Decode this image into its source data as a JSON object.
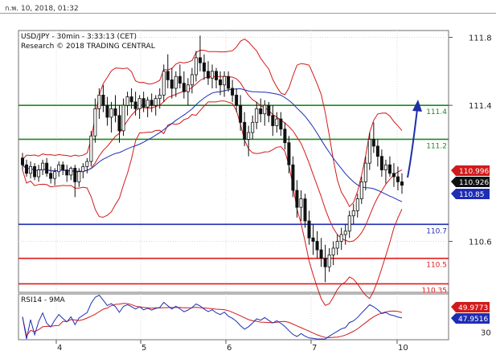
{
  "header": {
    "date": "ก.พ. 10, 2018, 01:32"
  },
  "chart_data": {
    "type": "candlestick",
    "title": "USD/JPY - 30min - 3:33:13 (CET)",
    "subtitle": "Research © 2018 TRADING CENTRAL",
    "x_ticks": [
      "4",
      "5",
      "6",
      "7",
      "10"
    ],
    "y_ticks": [
      "111.8",
      "111.4",
      "110.6"
    ],
    "ylim": [
      110.3,
      111.84
    ],
    "grid": true,
    "levels": [
      {
        "value": 111.4,
        "label": "111.4",
        "color": "#1e8a1e"
      },
      {
        "value": 111.2,
        "label": "111.2",
        "color": "#1e8a1e"
      },
      {
        "value": 110.7,
        "label": "110.7",
        "color": "#1e2db4"
      },
      {
        "value": 110.5,
        "label": "110.5",
        "color": "#e01a1a"
      },
      {
        "value": 110.35,
        "label": "110.35",
        "color": "#e01a1a"
      }
    ],
    "price_tags": [
      {
        "label": "110.996",
        "value": 110.996,
        "color": "#d11a1a"
      },
      {
        "label": "110.926",
        "value": 110.926,
        "color": "#111111"
      },
      {
        "label": "110.85",
        "value": 110.85,
        "color": "#1e2db4"
      }
    ],
    "ohlc": [
      [
        111.09,
        111.12,
        111.02,
        111.05
      ],
      [
        111.05,
        111.08,
        110.98,
        111.0
      ],
      [
        111.0,
        111.07,
        110.97,
        111.04
      ],
      [
        111.04,
        111.06,
        110.96,
        110.98
      ],
      [
        110.98,
        111.05,
        110.95,
        111.02
      ],
      [
        111.02,
        111.08,
        110.99,
        111.06
      ],
      [
        111.06,
        111.09,
        110.98,
        111.0
      ],
      [
        111.0,
        111.04,
        110.94,
        110.97
      ],
      [
        110.97,
        111.03,
        110.93,
        111.01
      ],
      [
        111.01,
        111.07,
        110.98,
        111.05
      ],
      [
        111.05,
        111.07,
        110.99,
        111.02
      ],
      [
        111.02,
        111.05,
        110.95,
        110.99
      ],
      [
        110.99,
        111.04,
        110.96,
        111.03
      ],
      [
        111.03,
        111.05,
        110.86,
        110.95
      ],
      [
        110.95,
        111.03,
        110.92,
        111.01
      ],
      [
        111.01,
        111.06,
        110.97,
        111.04
      ],
      [
        111.04,
        111.09,
        111.0,
        111.07
      ],
      [
        111.07,
        111.25,
        111.04,
        111.22
      ],
      [
        111.22,
        111.44,
        111.18,
        111.38
      ],
      [
        111.38,
        111.5,
        111.32,
        111.46
      ],
      [
        111.46,
        111.52,
        111.36,
        111.4
      ],
      [
        111.4,
        111.45,
        111.28,
        111.33
      ],
      [
        111.33,
        111.42,
        111.24,
        111.38
      ],
      [
        111.38,
        111.46,
        111.3,
        111.34
      ],
      [
        111.34,
        111.4,
        111.18,
        111.25
      ],
      [
        111.25,
        111.44,
        111.22,
        111.4
      ],
      [
        111.4,
        111.48,
        111.34,
        111.45
      ],
      [
        111.45,
        111.5,
        111.38,
        111.42
      ],
      [
        111.42,
        111.48,
        111.34,
        111.38
      ],
      [
        111.38,
        111.46,
        111.32,
        111.44
      ],
      [
        111.44,
        111.48,
        111.36,
        111.39
      ],
      [
        111.39,
        111.45,
        111.33,
        111.43
      ],
      [
        111.43,
        111.47,
        111.36,
        111.4
      ],
      [
        111.4,
        111.46,
        111.34,
        111.44
      ],
      [
        111.44,
        111.5,
        111.38,
        111.46
      ],
      [
        111.46,
        111.64,
        111.42,
        111.6
      ],
      [
        111.6,
        111.7,
        111.5,
        111.55
      ],
      [
        111.55,
        111.62,
        111.44,
        111.5
      ],
      [
        111.5,
        111.6,
        111.45,
        111.57
      ],
      [
        111.57,
        111.64,
        111.5,
        111.53
      ],
      [
        111.53,
        111.6,
        111.44,
        111.48
      ],
      [
        111.48,
        111.56,
        111.4,
        111.52
      ],
      [
        111.52,
        111.62,
        111.47,
        111.58
      ],
      [
        111.58,
        111.72,
        111.54,
        111.68
      ],
      [
        111.68,
        111.81,
        111.6,
        111.65
      ],
      [
        111.65,
        111.7,
        111.55,
        111.6
      ],
      [
        111.6,
        111.66,
        111.52,
        111.56
      ],
      [
        111.56,
        111.64,
        111.5,
        111.6
      ],
      [
        111.6,
        111.62,
        111.5,
        111.55
      ],
      [
        111.55,
        111.6,
        111.46,
        111.52
      ],
      [
        111.52,
        111.6,
        111.45,
        111.57
      ],
      [
        111.57,
        111.6,
        111.48,
        111.5
      ],
      [
        111.5,
        111.55,
        111.42,
        111.46
      ],
      [
        111.46,
        111.5,
        111.36,
        111.4
      ],
      [
        111.4,
        111.46,
        111.25,
        111.3
      ],
      [
        111.3,
        111.36,
        111.16,
        111.2
      ],
      [
        111.2,
        111.28,
        111.1,
        111.24
      ],
      [
        111.24,
        111.34,
        111.2,
        111.3
      ],
      [
        111.3,
        111.42,
        111.26,
        111.38
      ],
      [
        111.38,
        111.44,
        111.3,
        111.35
      ],
      [
        111.35,
        111.43,
        111.28,
        111.4
      ],
      [
        111.4,
        111.42,
        111.3,
        111.34
      ],
      [
        111.34,
        111.4,
        111.22,
        111.28
      ],
      [
        111.28,
        111.36,
        111.24,
        111.32
      ],
      [
        111.32,
        111.36,
        111.22,
        111.26
      ],
      [
        111.26,
        111.3,
        111.14,
        111.18
      ],
      [
        111.18,
        111.22,
        111.0,
        111.05
      ],
      [
        111.05,
        111.1,
        110.86,
        110.9
      ],
      [
        110.9,
        110.96,
        110.74,
        110.8
      ],
      [
        110.8,
        110.9,
        110.72,
        110.85
      ],
      [
        110.85,
        110.88,
        110.68,
        110.72
      ],
      [
        110.72,
        110.78,
        110.58,
        110.62
      ],
      [
        110.62,
        110.7,
        110.52,
        110.6
      ],
      [
        110.6,
        110.66,
        110.5,
        110.55
      ],
      [
        110.55,
        110.62,
        110.45,
        110.5
      ],
      [
        110.5,
        110.58,
        110.36,
        110.45
      ],
      [
        110.45,
        110.56,
        110.42,
        110.52
      ],
      [
        110.52,
        110.6,
        110.46,
        110.56
      ],
      [
        110.56,
        110.64,
        110.52,
        110.6
      ],
      [
        110.6,
        110.68,
        110.55,
        110.64
      ],
      [
        110.64,
        110.7,
        110.58,
        110.66
      ],
      [
        110.66,
        110.78,
        110.62,
        110.75
      ],
      [
        110.75,
        110.82,
        110.7,
        110.78
      ],
      [
        110.78,
        110.88,
        110.74,
        110.85
      ],
      [
        110.85,
        110.98,
        110.82,
        110.95
      ],
      [
        110.95,
        111.1,
        110.9,
        111.06
      ],
      [
        111.06,
        111.24,
        111.02,
        111.2
      ],
      [
        111.2,
        111.3,
        111.12,
        111.16
      ],
      [
        111.16,
        111.2,
        111.04,
        111.1
      ],
      [
        111.1,
        111.14,
        110.98,
        111.02
      ],
      [
        111.02,
        111.08,
        110.94,
        111.05
      ],
      [
        111.05,
        111.1,
        110.98,
        111.0
      ],
      [
        111.0,
        111.06,
        110.92,
        110.98
      ],
      [
        110.98,
        111.04,
        110.9,
        110.95
      ],
      [
        110.95,
        111.0,
        110.88,
        110.93
      ]
    ],
    "rsi": {
      "label": "RSI14 - 9MA",
      "ylim": [
        20,
        80
      ],
      "y_ticks": [
        "30"
      ],
      "value_tags": [
        {
          "label": "49.9773",
          "value": 49.98,
          "color": "#d11a1a"
        },
        {
          "label": "47.9516",
          "value": 47.95,
          "color": "#1e2db4"
        }
      ]
    }
  }
}
